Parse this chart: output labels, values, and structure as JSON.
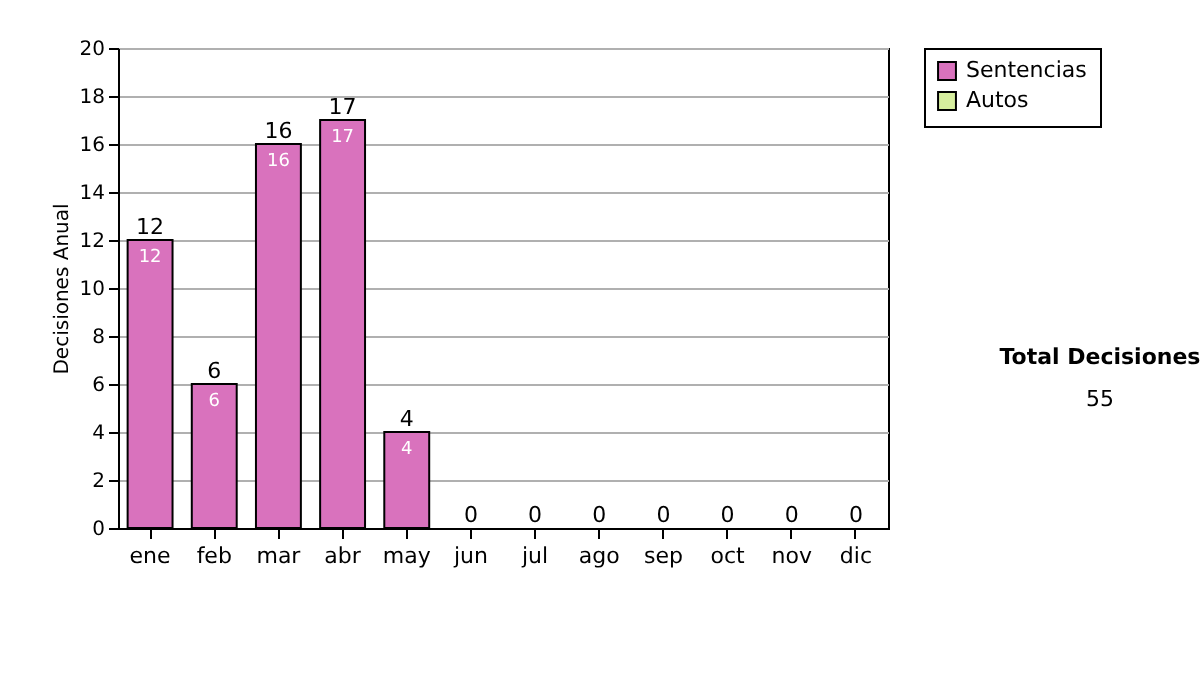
{
  "chart_data": {
    "type": "bar",
    "stacked": true,
    "ylabel": "Decisiones Anual",
    "categories": [
      "ene",
      "feb",
      "mar",
      "abr",
      "may",
      "jun",
      "jul",
      "ago",
      "sep",
      "oct",
      "nov",
      "dic"
    ],
    "series": [
      {
        "name": "Sentencias",
        "color": "#d972bd",
        "values": [
          12,
          6,
          16,
          17,
          4,
          0,
          0,
          0,
          0,
          0,
          0,
          0
        ],
        "value_labels": [
          "12",
          "6",
          "16",
          "17",
          "4",
          null,
          null,
          null,
          null,
          null,
          null,
          null
        ]
      },
      {
        "name": "Autos",
        "color": "#d6ee9e",
        "values": [
          0,
          0,
          0,
          0,
          0,
          0,
          0,
          0,
          0,
          0,
          0,
          0
        ]
      }
    ],
    "totals": [
      "12",
      "6",
      "16",
      "17",
      "4",
      "0",
      "0",
      "0",
      "0",
      "0",
      "0",
      "0"
    ],
    "ylim": [
      0,
      20
    ],
    "yticks": [
      0,
      2,
      4,
      6,
      8,
      10,
      12,
      14,
      16,
      18,
      20
    ],
    "grid": "y",
    "legend": "right",
    "annotations": [
      "Total Decisiones",
      "55"
    ]
  }
}
